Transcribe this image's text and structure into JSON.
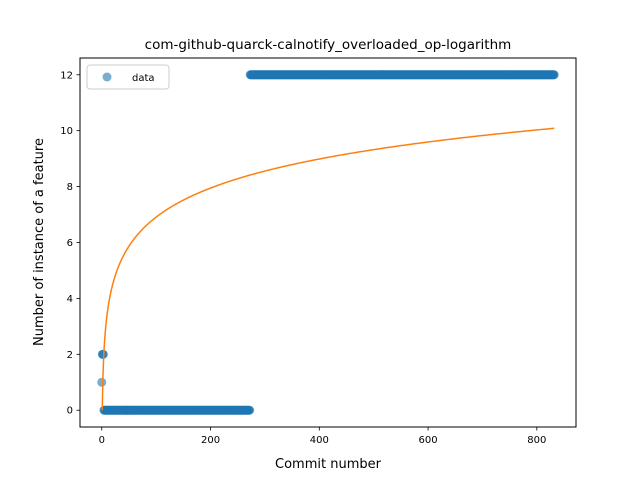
{
  "chart_data": {
    "type": "scatter",
    "title": "com-github-quarck-calnotify_overloaded_op-logarithm",
    "xlabel": "Commit number",
    "ylabel": "Number of instance of a feature",
    "xlim": [
      -40,
      872
    ],
    "ylim": [
      -0.6,
      12.6
    ],
    "xticks": [
      0,
      200,
      400,
      600,
      800
    ],
    "yticks": [
      0,
      2,
      4,
      6,
      8,
      10,
      12
    ],
    "grid": false,
    "legend": {
      "position": "top-left",
      "entries": [
        "data"
      ]
    },
    "series": [
      {
        "name": "data",
        "kind": "points",
        "color": "#1f77b4",
        "segments": [
          {
            "x_start": 0,
            "x_end": 0,
            "y": 1
          },
          {
            "x_start": 1,
            "x_end": 3,
            "y": 2
          },
          {
            "x_start": 4,
            "x_end": 272,
            "y": 0
          },
          {
            "x_start": 273,
            "x_end": 832,
            "y": 12
          }
        ]
      },
      {
        "kind": "fit-line",
        "color": "#ff7f0e",
        "model": "y = a + b*ln(x)",
        "a": 0.0,
        "b": 1.5,
        "x_range": [
          1,
          832
        ]
      }
    ]
  }
}
